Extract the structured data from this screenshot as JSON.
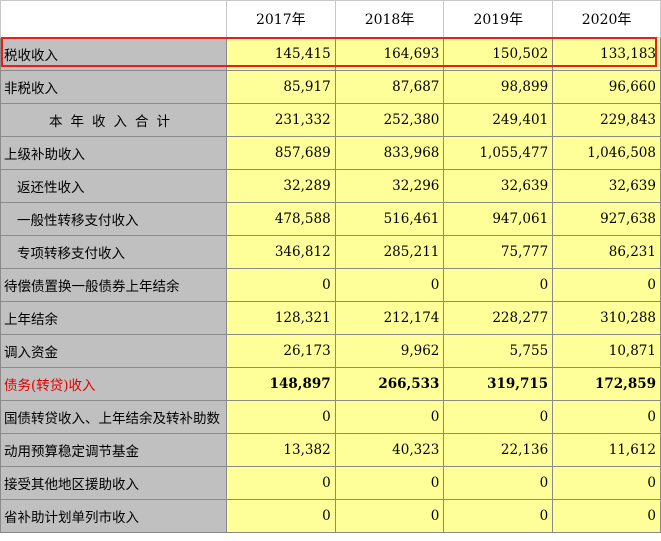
{
  "sheet": {
    "years": [
      "2017年",
      "2018年",
      "2019年",
      "2020年"
    ],
    "rows": [
      {
        "label": "税收收入",
        "values": [
          "145,415",
          "164,693",
          "150,502",
          "133,183"
        ]
      },
      {
        "label": "非税收入",
        "values": [
          "85,917",
          "87,687",
          "98,899",
          "96,660"
        ]
      },
      {
        "label": "本年收入合计",
        "values": [
          "231,332",
          "252,380",
          "249,401",
          "229,843"
        ]
      },
      {
        "label": "上级补助收入",
        "values": [
          "857,689",
          "833,968",
          "1,055,477",
          "1,046,508"
        ]
      },
      {
        "label": "返还性收入",
        "values": [
          "32,289",
          "32,296",
          "32,639",
          "32,639"
        ]
      },
      {
        "label": "一般性转移支付收入",
        "values": [
          "478,588",
          "516,461",
          "947,061",
          "927,638"
        ]
      },
      {
        "label": "专项转移支付收入",
        "values": [
          "346,812",
          "285,211",
          "75,777",
          "86,231"
        ]
      },
      {
        "label": "待偿债置换一般债券上年结余",
        "values": [
          "0",
          "0",
          "0",
          "0"
        ]
      },
      {
        "label": "上年结余",
        "values": [
          "128,321",
          "212,174",
          "228,277",
          "310,288"
        ]
      },
      {
        "label": "调入资金",
        "values": [
          "26,173",
          "9,962",
          "5,755",
          "10,871"
        ]
      },
      {
        "label": "债务(转贷)收入",
        "values": [
          "148,897",
          "266,533",
          "319,715",
          "172,859"
        ]
      },
      {
        "label": "国债转贷收入、上年结余及转补助数",
        "values": [
          "0",
          "0",
          "0",
          "0"
        ]
      },
      {
        "label": "动用预算稳定调节基金",
        "values": [
          "13,382",
          "40,323",
          "22,136",
          "11,612"
        ]
      },
      {
        "label": "接受其他地区援助收入",
        "values": [
          "0",
          "0",
          "0",
          "0"
        ]
      },
      {
        "label": "省补助计划单列市收入",
        "values": [
          "0",
          "0",
          "0",
          "0"
        ]
      }
    ]
  },
  "colors": {
    "label_bg": "#c0c0c0",
    "value_bg": "#ffff99",
    "highlight_border": "#e8201a",
    "debt_label_text": "#e00000"
  }
}
